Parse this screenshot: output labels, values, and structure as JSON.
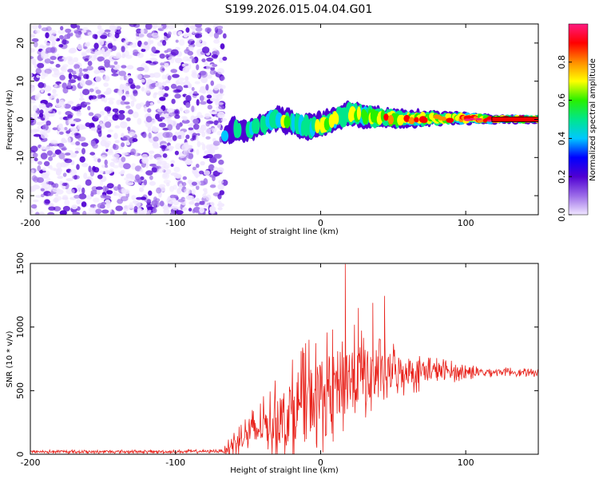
{
  "figure": {
    "title": "S199.2026.015.04.04.G01"
  },
  "colors": {
    "spectral_stops": [
      "#f0e6ff",
      "#9b6be8",
      "#5000d2",
      "#0000ff",
      "#00c8ff",
      "#00e68c",
      "#28f000",
      "#ffff00",
      "#ff8c00",
      "#ff0000",
      "#ff1a80"
    ],
    "snr_line": "#e8221b",
    "axis": "#000000"
  },
  "chart_data": [
    {
      "type": "heatmap",
      "title": "",
      "xlabel": "Height of straight line (km)",
      "ylabel": "Frequency (Hz)",
      "xlim": [
        -200,
        150
      ],
      "ylim": [
        -25,
        25
      ],
      "x_ticks": [
        {
          "v": -200,
          "label": "-200"
        },
        {
          "v": -100,
          "label": "-100"
        },
        {
          "v": 0,
          "label": "0"
        },
        {
          "v": 100,
          "label": "100"
        }
      ],
      "y_ticks": [
        {
          "v": -20,
          "label": "-20"
        },
        {
          "v": -10,
          "label": "-10"
        },
        {
          "v": 0,
          "label": "0"
        },
        {
          "v": 10,
          "label": "10"
        },
        {
          "v": 20,
          "label": "20"
        }
      ],
      "noise_region_x": [
        -200,
        -66
      ],
      "noise_amplitude_range": [
        0,
        0.15
      ],
      "signal_track": {
        "x": [
          -66,
          -60,
          -50,
          -40,
          -30,
          -20,
          -10,
          0,
          10,
          20,
          40,
          60,
          80,
          100,
          120,
          150
        ],
        "center_freq_hz": [
          -4.5,
          -2.5,
          -3,
          -1.5,
          0.5,
          -1,
          -2,
          -1.5,
          0,
          1.5,
          0.5,
          0.2,
          0.3,
          0.4,
          0,
          0
        ],
        "half_width_hz": [
          2,
          3,
          2.5,
          2.5,
          3,
          3,
          3,
          3,
          2.5,
          3,
          2.5,
          2,
          1.5,
          1.3,
          0.8,
          0.8
        ],
        "peak_amplitude": [
          0.3,
          0.35,
          0.4,
          0.4,
          0.5,
          0.45,
          0.5,
          0.5,
          0.55,
          0.6,
          0.65,
          0.7,
          0.8,
          0.85,
          0.9,
          0.95
        ]
      },
      "colorbar": {
        "label": "Normalized spectral amplitude",
        "range": [
          0,
          1
        ],
        "ticks": [
          {
            "v": 0,
            "label": "0.0"
          },
          {
            "v": 0.2,
            "label": "0.2"
          },
          {
            "v": 0.4,
            "label": "0.4"
          },
          {
            "v": 0.6,
            "label": "0.6"
          },
          {
            "v": 0.8,
            "label": "0.8"
          }
        ]
      }
    },
    {
      "type": "line",
      "title": "",
      "xlabel": "Height of straight line (km)",
      "ylabel": "SNR (10 * v/v)",
      "xlim": [
        -200,
        150
      ],
      "ylim": [
        0,
        1500
      ],
      "x_ticks": [
        {
          "v": -200,
          "label": "-200"
        },
        {
          "v": -100,
          "label": "-100"
        },
        {
          "v": 0,
          "label": "0"
        },
        {
          "v": 100,
          "label": "100"
        }
      ],
      "y_ticks": [
        {
          "v": 0,
          "label": "0"
        },
        {
          "v": 500,
          "label": "500"
        },
        {
          "v": 1000,
          "label": "1000"
        },
        {
          "v": 1500,
          "label": "1500"
        }
      ],
      "series": [
        {
          "name": "SNR",
          "x": [
            -200,
            -150,
            -100,
            -67,
            -62,
            -55,
            -50,
            -40,
            -30,
            -20,
            -10,
            0,
            10,
            16,
            20,
            30,
            40,
            50,
            60,
            70,
            80,
            90,
            100,
            110,
            120,
            130,
            140,
            150
          ],
          "mean": [
            20,
            20,
            20,
            25,
            60,
            130,
            160,
            220,
            280,
            330,
            420,
            480,
            530,
            600,
            600,
            620,
            630,
            650,
            660,
            650,
            660,
            650,
            650,
            640,
            650,
            650,
            640,
            640
          ],
          "spread": [
            15,
            15,
            15,
            15,
            100,
            140,
            170,
            230,
            330,
            420,
            460,
            480,
            480,
            470,
            450,
            360,
            300,
            260,
            200,
            160,
            120,
            90,
            70,
            50,
            40,
            35,
            35,
            30
          ],
          "peaks": [
            {
              "x": 17,
              "y": 1495
            },
            {
              "x": 36,
              "y": 1190
            },
            {
              "x": 44,
              "y": 1245
            },
            {
              "x": 26,
              "y": 1150
            },
            {
              "x": -8,
              "y": 900
            }
          ]
        }
      ]
    }
  ]
}
